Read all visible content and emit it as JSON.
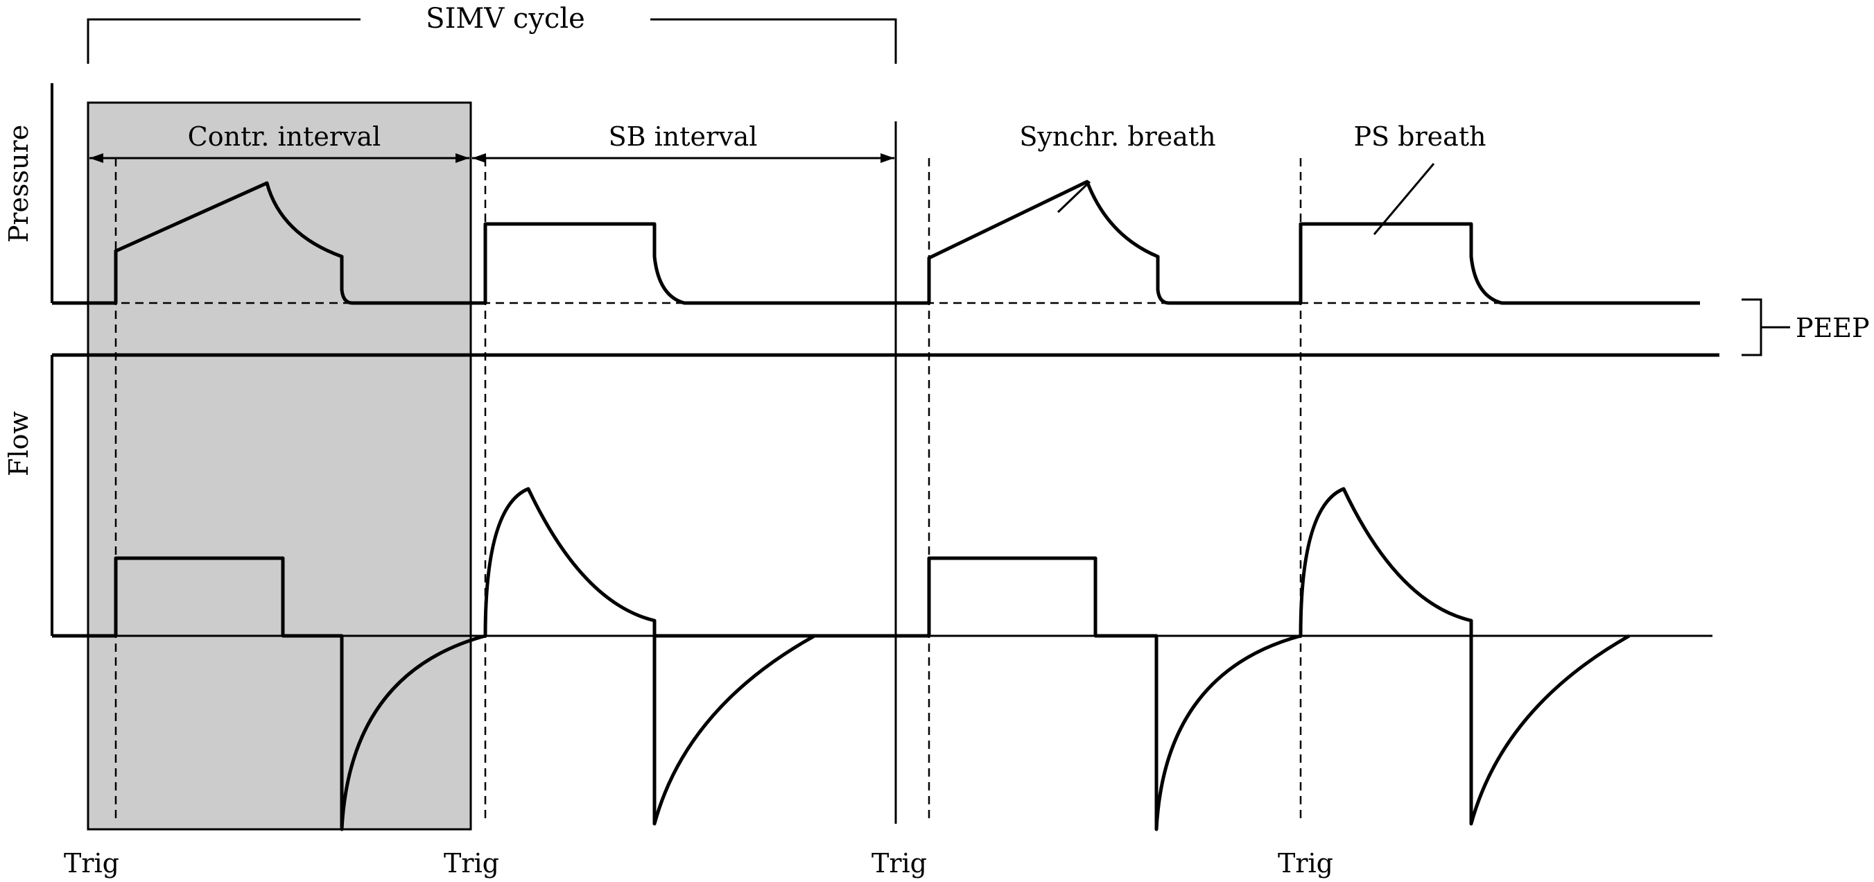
{
  "labels": {
    "cycle": "SIMV cycle",
    "contr_interval": "Contr. interval",
    "sb_interval": "SB interval",
    "synchr_breath": "Synchr. breath",
    "ps_breath": "PS breath",
    "pressure_axis": "Pressure",
    "flow_axis": "Flow",
    "peep": "PEEP",
    "trig_1": "Trig",
    "trig_2": "Trig",
    "trig_3": "Trig",
    "trig_4": "Trig"
  },
  "colors": {
    "line": "#000000",
    "shade": "#cccccc",
    "background": "#ffffff"
  }
}
